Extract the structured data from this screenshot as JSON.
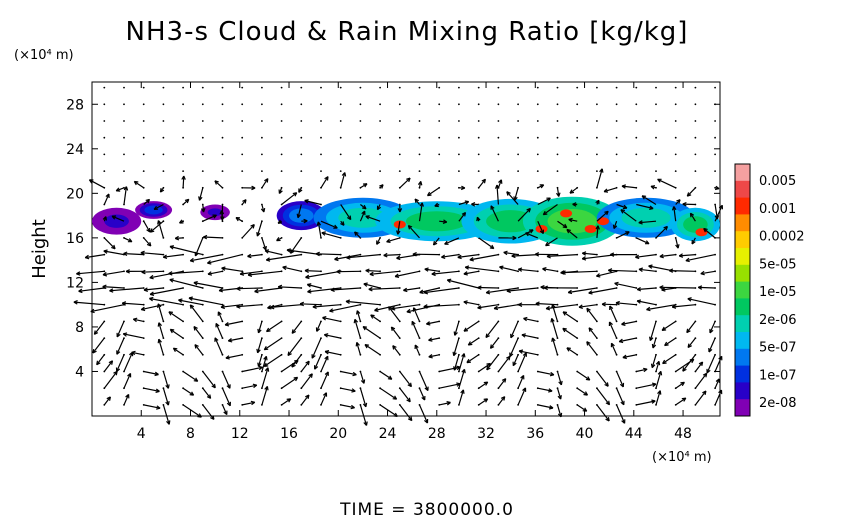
{
  "chart_data": {
    "type": "heatmap",
    "title": "NH3-s Cloud & Rain Mixing Ratio [kg/kg]",
    "ylabel": "Height",
    "y_unit": "(×10⁴ m)",
    "x_unit": "(×10⁴ m)",
    "time_label": "TIME  =  3800000.0",
    "xlim": [
      0,
      51
    ],
    "ylim": [
      0,
      30
    ],
    "xticks": [
      "4",
      "8",
      "12",
      "16",
      "20",
      "24",
      "28",
      "32",
      "36",
      "40",
      "44",
      "48"
    ],
    "xtick_values": [
      4,
      8,
      12,
      16,
      20,
      24,
      28,
      32,
      36,
      40,
      44,
      48
    ],
    "yticks": [
      "4",
      "8",
      "12",
      "16",
      "20",
      "24",
      "28"
    ],
    "ytick_values": [
      4,
      8,
      12,
      16,
      20,
      24,
      28
    ],
    "colorbar": {
      "labels": [
        "0.005",
        "0.001",
        "0.0002",
        "5e-05",
        "1e-05",
        "2e-06",
        "5e-07",
        "1e-07",
        "2e-08"
      ],
      "colors": [
        "#f5a0a0",
        "#ee4848",
        "#ff2a00",
        "#ff8c00",
        "#ffcc00",
        "#e6f000",
        "#98e000",
        "#3cd640",
        "#00c860",
        "#00d0b0",
        "#00b8f0",
        "#0078f0",
        "#0030e0",
        "#2800c8",
        "#8000b4"
      ]
    },
    "cloud_layer": {
      "description": "NH3 cloud layer between ~16 and ~20 (×10⁴ m) height",
      "height_range": [
        16,
        20
      ],
      "x_extent": [
        2,
        50
      ],
      "max_mixing_ratio": "0.001",
      "peak_x": [
        36,
        41
      ]
    },
    "vector_field": "wind vectors overlaid on domain"
  }
}
